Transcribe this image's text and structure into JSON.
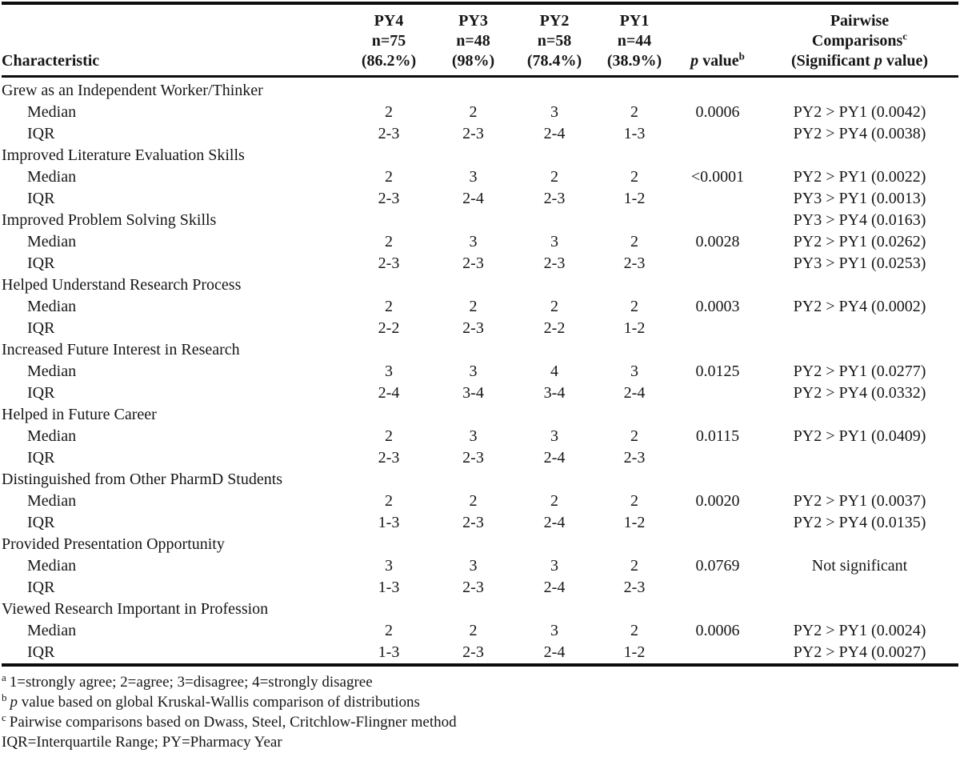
{
  "header": {
    "characteristic": "Characteristic",
    "py_columns": [
      {
        "line1": "PY4",
        "line2": "n=75",
        "line3": "(86.2%)"
      },
      {
        "line1": "PY3",
        "line2": "n=48",
        "line3": "(98%)"
      },
      {
        "line1": "PY2",
        "line2": "n=58",
        "line3": "(78.4%)"
      },
      {
        "line1": "PY1",
        "line2": "n=44",
        "line3": "(38.9%)"
      }
    ],
    "p_value": {
      "italic": "p",
      "rest": " value",
      "sup": "b"
    },
    "pairwise": {
      "line1": "Pairwise",
      "line2": "Comparisons",
      "sup": "c",
      "line3_pre": "(Significant ",
      "line3_italic": "p",
      "line3_post": " value)"
    }
  },
  "rows": [
    {
      "group": true,
      "label": "Grew as an Independent Worker/Thinker",
      "py4": "",
      "py3": "",
      "py2": "",
      "py1": "",
      "p": "",
      "pairwise": ""
    },
    {
      "group": false,
      "label": "Median",
      "py4": "2",
      "py3": "2",
      "py2": "3",
      "py1": "2",
      "p": "0.0006",
      "pairwise": "PY2 > PY1 (0.0042)"
    },
    {
      "group": false,
      "label": "IQR",
      "py4": "2-3",
      "py3": "2-3",
      "py2": "2-4",
      "py1": "1-3",
      "p": "",
      "pairwise": "PY2 > PY4 (0.0038)"
    },
    {
      "group": true,
      "label": "Improved Literature Evaluation Skills",
      "py4": "",
      "py3": "",
      "py2": "",
      "py1": "",
      "p": "",
      "pairwise": ""
    },
    {
      "group": false,
      "label": "Median",
      "py4": "2",
      "py3": "3",
      "py2": "2",
      "py1": "2",
      "p": "<0.0001",
      "pairwise": "PY2 > PY1 (0.0022)"
    },
    {
      "group": false,
      "label": "IQR",
      "py4": "2-3",
      "py3": "2-4",
      "py2": "2-3",
      "py1": "1-2",
      "p": "",
      "pairwise": "PY3 > PY1 (0.0013)"
    },
    {
      "group": true,
      "label": "Improved Problem Solving Skills",
      "py4": "",
      "py3": "",
      "py2": "",
      "py1": "",
      "p": "",
      "pairwise": "PY3 > PY4 (0.0163)"
    },
    {
      "group": false,
      "label": "Median",
      "py4": "2",
      "py3": "3",
      "py2": "3",
      "py1": "2",
      "p": "0.0028",
      "pairwise": "PY2 > PY1 (0.0262)"
    },
    {
      "group": false,
      "label": "IQR",
      "py4": "2-3",
      "py3": "2-3",
      "py2": "2-3",
      "py1": "2-3",
      "p": "",
      "pairwise": "PY3 > PY1 (0.0253)"
    },
    {
      "group": true,
      "label": "Helped Understand Research Process",
      "py4": "",
      "py3": "",
      "py2": "",
      "py1": "",
      "p": "",
      "pairwise": ""
    },
    {
      "group": false,
      "label": "Median",
      "py4": "2",
      "py3": "2",
      "py2": "2",
      "py1": "2",
      "p": "0.0003",
      "pairwise": "PY2 > PY4 (0.0002)"
    },
    {
      "group": false,
      "label": "IQR",
      "py4": "2-2",
      "py3": "2-3",
      "py2": "2-2",
      "py1": "1-2",
      "p": "",
      "pairwise": ""
    },
    {
      "group": true,
      "label": "Increased Future Interest in Research",
      "py4": "",
      "py3": "",
      "py2": "",
      "py1": "",
      "p": "",
      "pairwise": ""
    },
    {
      "group": false,
      "label": "Median",
      "py4": "3",
      "py3": "3",
      "py2": "4",
      "py1": "3",
      "p": "0.0125",
      "pairwise": "PY2 > PY1 (0.0277)"
    },
    {
      "group": false,
      "label": "IQR",
      "py4": "2-4",
      "py3": "3-4",
      "py2": "3-4",
      "py1": "2-4",
      "p": "",
      "pairwise": "PY2 > PY4 (0.0332)"
    },
    {
      "group": true,
      "label": "Helped in Future Career",
      "py4": "",
      "py3": "",
      "py2": "",
      "py1": "",
      "p": "",
      "pairwise": ""
    },
    {
      "group": false,
      "label": "Median",
      "py4": "2",
      "py3": "3",
      "py2": "3",
      "py1": "2",
      "p": "0.0115",
      "pairwise": "PY2 > PY1 (0.0409)"
    },
    {
      "group": false,
      "label": "IQR",
      "py4": "2-3",
      "py3": "2-3",
      "py2": "2-4",
      "py1": "2-3",
      "p": "",
      "pairwise": ""
    },
    {
      "group": true,
      "label": "Distinguished from Other PharmD Students",
      "py4": "",
      "py3": "",
      "py2": "",
      "py1": "",
      "p": "",
      "pairwise": ""
    },
    {
      "group": false,
      "label": "Median",
      "py4": "2",
      "py3": "2",
      "py2": "2",
      "py1": "2",
      "p": "0.0020",
      "pairwise": "PY2 > PY1 (0.0037)"
    },
    {
      "group": false,
      "label": "IQR",
      "py4": "1-3",
      "py3": "2-3",
      "py2": "2-4",
      "py1": "1-2",
      "p": "",
      "pairwise": "PY2 > PY4 (0.0135)"
    },
    {
      "group": true,
      "label": "Provided Presentation Opportunity",
      "py4": "",
      "py3": "",
      "py2": "",
      "py1": "",
      "p": "",
      "pairwise": ""
    },
    {
      "group": false,
      "label": "Median",
      "py4": "3",
      "py3": "3",
      "py2": "3",
      "py1": "2",
      "p": "0.0769",
      "pairwise": "Not significant"
    },
    {
      "group": false,
      "label": "IQR",
      "py4": "1-3",
      "py3": "2-3",
      "py2": "2-4",
      "py1": "2-3",
      "p": "",
      "pairwise": ""
    },
    {
      "group": true,
      "label": "Viewed Research Important in Profession",
      "py4": "",
      "py3": "",
      "py2": "",
      "py1": "",
      "p": "",
      "pairwise": ""
    },
    {
      "group": false,
      "label": "Median",
      "py4": "2",
      "py3": "2",
      "py2": "3",
      "py1": "2",
      "p": "0.0006",
      "pairwise": "PY2 > PY1 (0.0024)"
    },
    {
      "group": false,
      "label": "IQR",
      "py4": "1-3",
      "py3": "2-3",
      "py2": "2-4",
      "py1": "1-2",
      "p": "",
      "pairwise": "PY2 > PY4 (0.0027)"
    }
  ],
  "footnotes": [
    {
      "sup": "a",
      "italic": "",
      "text": "1=strongly agree; 2=agree; 3=disagree; 4=strongly disagree"
    },
    {
      "sup": "b",
      "italic": "p",
      "text": " value based on global Kruskal-Wallis comparison of distributions"
    },
    {
      "sup": "c",
      "italic": "",
      "text": "Pairwise comparisons based on Dwass, Steel, Critchlow-Flingner method"
    },
    {
      "sup": "",
      "italic": "",
      "text": "IQR=Interquartile Range; PY=Pharmacy Year"
    }
  ]
}
